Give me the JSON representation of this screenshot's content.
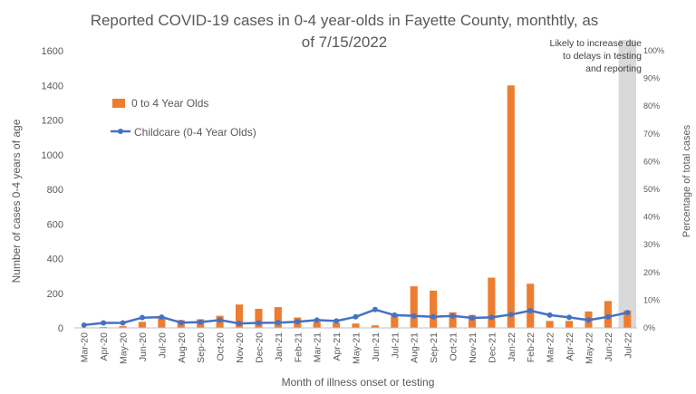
{
  "chart_data": {
    "type": "bar",
    "title_line1": "Reported COVID-19 cases in 0-4 year-olds in Fayette County, monthtly, as",
    "title_line2": "of 7/15/2022",
    "xlabel": "Month of illness onset or testing",
    "ylabel": "Number of cases 0-4 years of age",
    "y2label": "Percentage of total cases",
    "ylim": [
      0,
      1600
    ],
    "y_ticks": [
      "0",
      "200",
      "400",
      "600",
      "800",
      "1000",
      "1200",
      "1400",
      "1600"
    ],
    "y2lim": [
      0,
      100
    ],
    "y2_ticks": [
      "0%",
      "10%",
      "20%",
      "30%",
      "40%",
      "50%",
      "60%",
      "70%",
      "80%",
      "90%",
      "100%"
    ],
    "categories": [
      "Mar-20",
      "Apr-20",
      "May-20",
      "Jun-20",
      "Jul-20",
      "Aug-20",
      "Sep-20",
      "Oct-20",
      "Nov-20",
      "Dec-20",
      "Jan-21",
      "Feb-21",
      "Mar-21",
      "Apr-21",
      "May-21",
      "Jun-21",
      "Jul-21",
      "Aug-21",
      "Sep-21",
      "Oct-21",
      "Nov-21",
      "Dec-21",
      "Jan-22",
      "Feb-22",
      "Mar-22",
      "Apr-22",
      "May-22",
      "Jun-22",
      "Jul-22"
    ],
    "series": [
      {
        "name": "0 to 4 Year Olds",
        "kind": "bar",
        "axis": "left",
        "color": "#ED7D31",
        "values": [
          3,
          5,
          10,
          35,
          65,
          45,
          50,
          70,
          135,
          110,
          120,
          60,
          35,
          30,
          25,
          15,
          80,
          240,
          215,
          90,
          75,
          290,
          1400,
          255,
          40,
          40,
          95,
          155,
          100
        ]
      },
      {
        "name": "Childcare (0-4 Year Olds)",
        "kind": "line",
        "axis": "right",
        "color": "#4472C4",
        "values": [
          1,
          1.8,
          1.8,
          3.7,
          3.9,
          1.9,
          2.1,
          2.8,
          1.6,
          1.8,
          1.9,
          2.2,
          2.8,
          2.5,
          4.0,
          6.6,
          4.6,
          4.3,
          4.0,
          4.3,
          3.6,
          3.8,
          4.8,
          6.2,
          4.6,
          3.8,
          2.8,
          4.0,
          5.5
        ]
      }
    ],
    "shaded_region": {
      "category": "Jul-22",
      "color": "#D9D9D9",
      "note_lines": [
        "Likely to increase due",
        "to delays in testing",
        "and reporting"
      ]
    },
    "legend_position": "top-left",
    "grid": false
  }
}
